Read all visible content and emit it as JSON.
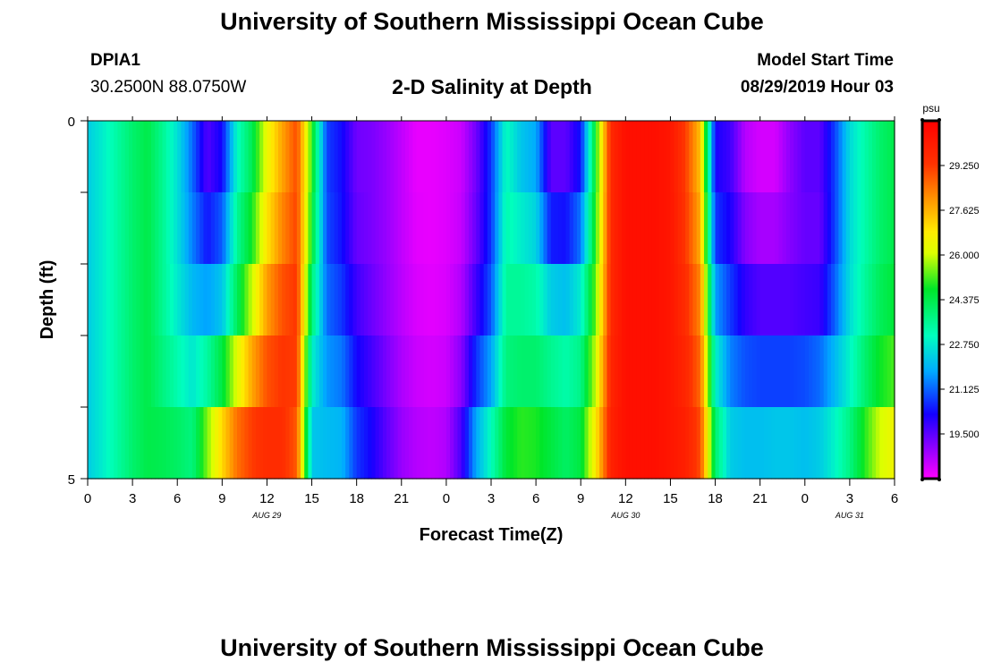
{
  "header": {
    "title": "University of Southern Mississippi Ocean Cube",
    "station": "DPIA1",
    "coords": "30.2500N 88.0750W",
    "subtitle": "2-D Salinity at Depth",
    "model_start_label": "Model Start Time",
    "model_start_value": "08/29/2019 Hour 03"
  },
  "footer": {
    "title": "University of Southern Mississippi Ocean Cube"
  },
  "chart_data": {
    "type": "heatmap",
    "title": "2-D Salinity at Depth",
    "xlabel": "Forecast Time(Z)",
    "ylabel": "Depth (ft)",
    "x_range_hours": [
      0,
      54
    ],
    "y_range_ft": [
      0,
      5
    ],
    "x_tick_labels": [
      "0",
      "3",
      "6",
      "9",
      "12",
      "15",
      "18",
      "21",
      "0",
      "3",
      "6",
      "9",
      "12",
      "15",
      "18",
      "21",
      "0",
      "3",
      "6"
    ],
    "y_tick_labels": [
      "0",
      "5"
    ],
    "date_labels": [
      {
        "text": "AUG 29",
        "hour": 12
      },
      {
        "text": "AUG 30",
        "hour": 36
      },
      {
        "text": "AUG 31",
        "hour": 51
      }
    ],
    "colorbar": {
      "unit": "psu",
      "range": [
        17.875,
        30.875
      ],
      "tick_values": [
        "29.250",
        "27.625",
        "26.000",
        "24.375",
        "22.750",
        "21.125",
        "19.500"
      ]
    },
    "depth_layers": [
      0.5,
      1.5,
      2.5,
      3.5,
      4.5
    ],
    "hours_step": 1,
    "salinity_psu": [
      [
        22.3,
        22.8,
        23.4,
        24.0,
        24.4,
        23.6,
        22.6,
        21.2,
        19.6,
        20.3,
        23.0,
        24.3,
        26.4,
        27.8,
        29.0,
        25.0,
        20.8,
        20.3,
        19.3,
        19.2,
        18.9,
        18.5,
        18.1,
        18.1,
        18.2,
        18.4,
        19.3,
        20.7,
        23.1,
        22.2,
        21.8,
        19.5,
        19.5,
        20.4,
        24.8,
        29.6,
        30.4,
        30.4,
        30.4,
        30.2,
        29.2,
        27.4,
        20.2,
        19.8,
        18.6,
        18.3,
        18.3,
        19.0,
        19.5,
        19.5,
        20.8,
        22.5,
        23.3,
        24.0,
        24.4
      ],
      [
        22.3,
        22.8,
        23.4,
        24.0,
        24.4,
        23.6,
        22.6,
        21.2,
        19.6,
        20.3,
        23.0,
        24.3,
        26.4,
        27.8,
        29.0,
        25.0,
        20.8,
        20.3,
        19.3,
        19.2,
        18.9,
        18.5,
        18.1,
        18.1,
        18.2,
        18.4,
        19.3,
        20.7,
        23.1,
        22.2,
        21.8,
        19.5,
        19.5,
        20.4,
        24.8,
        29.6,
        30.4,
        30.4,
        30.4,
        30.2,
        29.2,
        27.4,
        20.2,
        19.8,
        18.6,
        18.3,
        18.3,
        19.0,
        19.5,
        19.5,
        20.8,
        22.5,
        23.3,
        24.0,
        24.4
      ],
      [
        22.3,
        22.8,
        23.4,
        24.0,
        24.4,
        23.6,
        22.6,
        21.6,
        21.2,
        21.8,
        24.0,
        25.4,
        27.4,
        28.6,
        29.2,
        24.4,
        21.0,
        20.4,
        19.5,
        19.2,
        18.9,
        18.5,
        18.2,
        18.1,
        18.2,
        18.5,
        19.5,
        20.7,
        23.4,
        23.4,
        23.0,
        21.4,
        21.2,
        22.2,
        25.2,
        29.6,
        30.4,
        30.4,
        30.4,
        30.2,
        29.4,
        28.0,
        21.2,
        20.5,
        19.6,
        19.2,
        19.2,
        19.2,
        19.3,
        19.3,
        20.8,
        22.5,
        23.3,
        24.0,
        24.4
      ],
      [
        22.3,
        22.8,
        23.4,
        24.0,
        24.4,
        23.6,
        22.9,
        22.4,
        22.2,
        22.6,
        24.4,
        26.6,
        28.4,
        29.2,
        29.4,
        23.4,
        21.4,
        21.0,
        20.1,
        19.5,
        19.0,
        18.6,
        18.3,
        18.2,
        18.3,
        18.8,
        20.1,
        21.3,
        23.6,
        23.6,
        23.6,
        23.2,
        23.0,
        23.4,
        25.6,
        29.6,
        30.4,
        30.4,
        30.4,
        30.2,
        29.6,
        28.4,
        22.2,
        21.0,
        20.3,
        20.0,
        20.0,
        20.0,
        20.2,
        20.4,
        21.4,
        22.6,
        23.6,
        24.4,
        24.8
      ],
      [
        22.3,
        22.8,
        23.4,
        24.0,
        24.4,
        24.0,
        23.6,
        23.0,
        24.6,
        26.4,
        28.0,
        29.0,
        29.4,
        29.4,
        29.0,
        22.4,
        21.8,
        21.6,
        20.4,
        20.0,
        19.4,
        18.8,
        18.5,
        18.4,
        18.5,
        19.3,
        21.2,
        22.2,
        24.0,
        24.4,
        24.4,
        24.0,
        23.6,
        24.0,
        26.4,
        29.8,
        30.4,
        30.4,
        30.4,
        30.2,
        29.8,
        28.8,
        23.6,
        21.8,
        21.6,
        21.6,
        21.6,
        21.6,
        21.6,
        22.0,
        22.6,
        23.2,
        24.3,
        25.2,
        25.6
      ],
      [
        22.3,
        22.8,
        23.4,
        24.0,
        24.4,
        24.6,
        24.6,
        24.6,
        26.4,
        27.8,
        29.0,
        29.4,
        29.6,
        29.6,
        28.6,
        22.0,
        22.3,
        22.3,
        21.0,
        20.4,
        19.6,
        19.0,
        18.7,
        18.6,
        18.8,
        20.1,
        22.4,
        24.0,
        25.2,
        25.6,
        25.4,
        25.0,
        24.6,
        25.0,
        27.2,
        29.8,
        30.4,
        30.4,
        30.4,
        30.2,
        30.0,
        29.2,
        24.4,
        22.8,
        22.6,
        22.6,
        22.8,
        22.8,
        22.6,
        22.6,
        23.2,
        24.3,
        25.6,
        26.8,
        27.4
      ]
    ],
    "salinity_note": "rows = depth 0,1,2,3,4,5 ft; columns = hourly forecast time 0..54 h from 00Z Aug 29"
  }
}
